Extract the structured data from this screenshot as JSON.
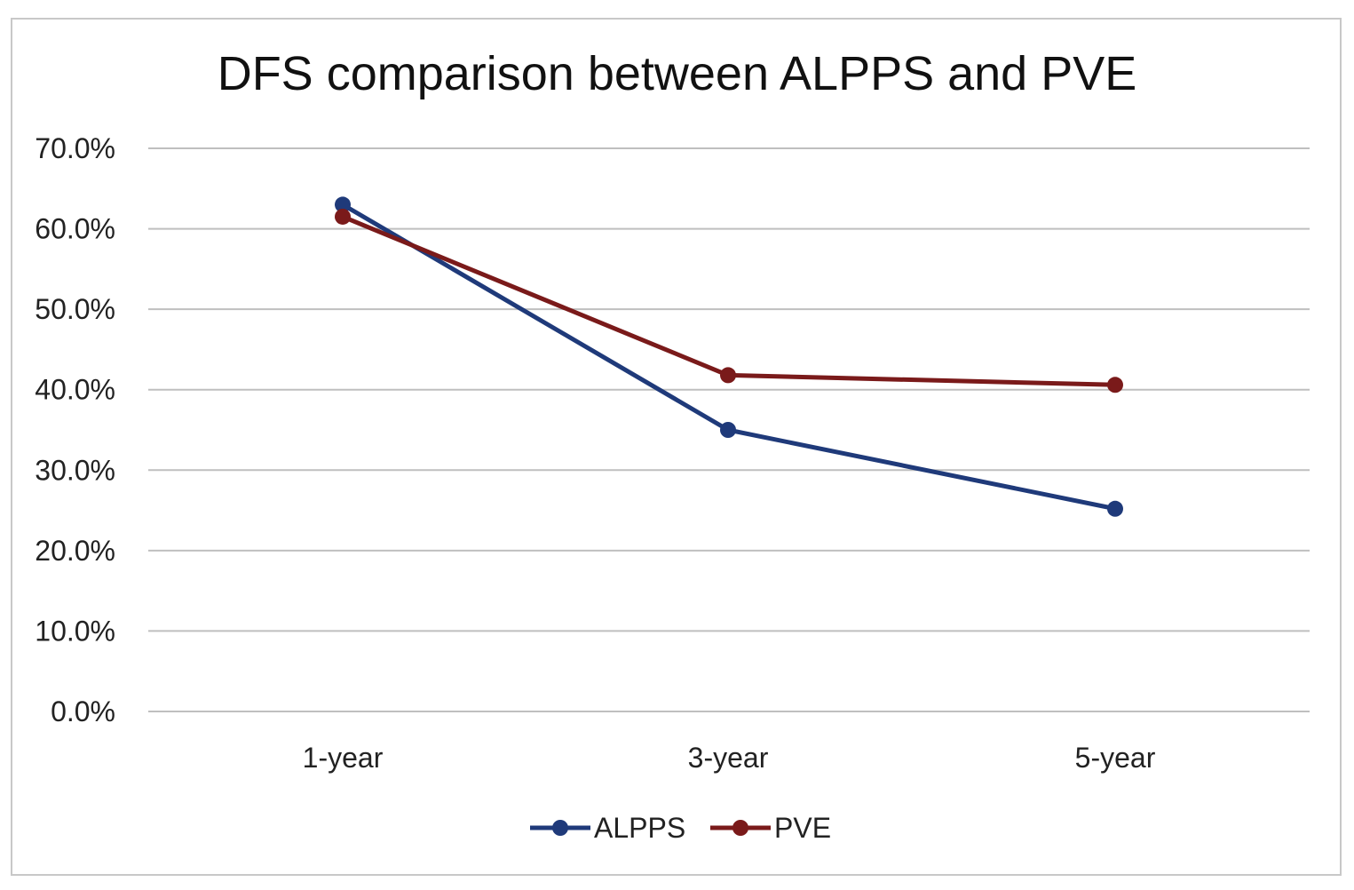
{
  "chart_data": {
    "type": "line",
    "title": "DFS comparison between ALPPS and PVE",
    "xlabel": "",
    "ylabel": "",
    "categories": [
      "1-year",
      "3-year",
      "5-year"
    ],
    "y_ticks": [
      "0.0%",
      "10.0%",
      "20.0%",
      "30.0%",
      "40.0%",
      "50.0%",
      "60.0%",
      "70.0%"
    ],
    "ylim": [
      0,
      70
    ],
    "grid": true,
    "legend_position": "bottom",
    "series": [
      {
        "name": "ALPPS",
        "values": [
          63.0,
          35.0,
          25.2
        ],
        "color": "#1f3a7a"
      },
      {
        "name": "PVE",
        "values": [
          61.5,
          41.8,
          40.6
        ],
        "color": "#7a1a1a"
      }
    ],
    "colors": {
      "gridline": "#bfbfbf",
      "text": "#222222",
      "border": "#c8c8c8"
    }
  }
}
